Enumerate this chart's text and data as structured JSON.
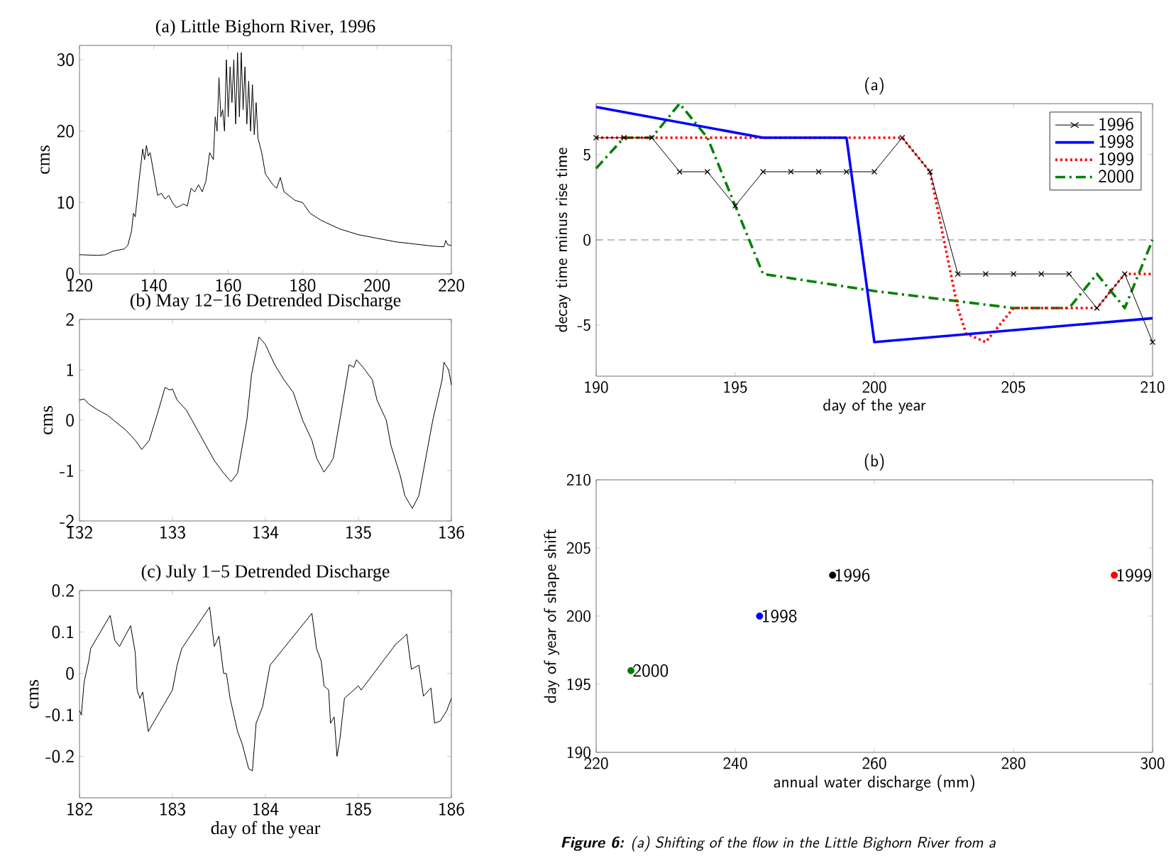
{
  "chart_data": [
    {
      "type": "line",
      "title": "(a) Little Bighorn River, 1996",
      "ylabel": "cms",
      "color": "#000000",
      "x": [
        120,
        125,
        127,
        129,
        132,
        133,
        134,
        134.5,
        135,
        135.5,
        136,
        137,
        137.5,
        138,
        138.5,
        139,
        140,
        141,
        142,
        143,
        144,
        145,
        146,
        147,
        148,
        149,
        150,
        151,
        152,
        153,
        154,
        155,
        156,
        156.5,
        157,
        157.5,
        158,
        158.5,
        159,
        159.5,
        160,
        160.5,
        161,
        161.5,
        162,
        162.5,
        163,
        163.5,
        164,
        164.5,
        165,
        165.5,
        166,
        166.5,
        167,
        167.5,
        168,
        169,
        170,
        172,
        173,
        174,
        175,
        178,
        180,
        182,
        185,
        190,
        195,
        200,
        205,
        210,
        215,
        218,
        218.5,
        219,
        220
      ],
      "values": [
        2.7,
        2.6,
        2.7,
        3.2,
        3.5,
        4,
        6,
        8.5,
        8,
        10.5,
        13,
        17.5,
        16,
        18,
        16.5,
        17,
        14,
        11,
        11.3,
        10.5,
        11,
        10,
        9.3,
        9.5,
        9.8,
        9.5,
        12,
        11.5,
        12.5,
        11.5,
        13,
        17,
        16,
        22,
        20,
        27.5,
        22,
        23,
        20,
        30,
        22,
        29,
        24,
        30,
        21,
        31,
        22,
        31,
        23,
        29,
        21,
        27,
        20,
        26.5,
        19.5,
        24,
        19,
        17,
        14,
        12.5,
        12,
        13.5,
        11.5,
        10.3,
        10,
        8.5,
        7.5,
        6.3,
        5.5,
        5,
        4.5,
        4.2,
        3.9,
        3.8,
        4.7,
        4.1,
        4
      ],
      "xlim": [
        120,
        220
      ],
      "ylim": [
        0,
        32
      ],
      "xticks": [
        120,
        140,
        160,
        180,
        200,
        220
      ],
      "yticks": [
        0,
        10,
        20,
        30
      ]
    },
    {
      "type": "line",
      "title": "(b) May 12−16 Detrended Discharge",
      "ylabel": "cms",
      "color": "#000000",
      "x": [
        132,
        132.05,
        132.1,
        132.2,
        132.3,
        132.4,
        132.5,
        132.6,
        132.67,
        132.75,
        132.85,
        132.92,
        132.97,
        133.0,
        133.05,
        133.15,
        133.3,
        133.45,
        133.55,
        133.63,
        133.7,
        133.8,
        133.85,
        133.93,
        134.0,
        134.1,
        134.2,
        134.3,
        134.4,
        134.5,
        134.55,
        134.63,
        134.7,
        134.73,
        134.8,
        134.9,
        134.95,
        134.98,
        135.05,
        135.15,
        135.2,
        135.3,
        135.35,
        135.45,
        135.5,
        135.58,
        135.65,
        135.75,
        135.8,
        135.9,
        135.92,
        135.97,
        136
      ],
      "values": [
        0.4,
        0.42,
        0.32,
        0.2,
        0.1,
        -0.05,
        -0.2,
        -0.4,
        -0.58,
        -0.4,
        0.2,
        0.65,
        0.6,
        0.62,
        0.4,
        0.2,
        -0.3,
        -0.8,
        -1.05,
        -1.22,
        -1.05,
        0.0,
        0.9,
        1.65,
        1.5,
        1.1,
        0.8,
        0.55,
        0.0,
        -0.4,
        -0.75,
        -1.03,
        -0.85,
        -0.75,
        0.0,
        1.1,
        1.05,
        1.2,
        1.05,
        0.8,
        0.4,
        0.0,
        -0.5,
        -1.1,
        -1.5,
        -1.75,
        -1.5,
        -0.5,
        0.0,
        0.8,
        1.15,
        1.0,
        0.7
      ],
      "xlim": [
        132,
        136
      ],
      "ylim": [
        -2,
        2
      ],
      "xticks": [
        132,
        133,
        134,
        135,
        136
      ],
      "yticks": [
        -2,
        -1,
        0,
        1,
        2
      ]
    },
    {
      "type": "line",
      "title": "(c) July 1−5 Detrended Discharge",
      "xlabel": "day of the year",
      "ylabel": "cms",
      "color": "#000000",
      "x": [
        182,
        182.02,
        182.05,
        182.1,
        182.12,
        182.33,
        182.38,
        182.43,
        182.55,
        182.6,
        182.62,
        182.65,
        182.68,
        182.74,
        183.0,
        183.05,
        183.1,
        183.4,
        183.45,
        183.5,
        183.55,
        183.58,
        183.62,
        183.7,
        183.75,
        183.82,
        183.86,
        183.9,
        183.97,
        184.05,
        184.5,
        184.55,
        184.6,
        184.63,
        184.68,
        184.7,
        184.74,
        184.77,
        184.8,
        184.85,
        185.0,
        185.03,
        185.4,
        185.45,
        185.5,
        185.52,
        185.57,
        185.65,
        185.7,
        185.78,
        185.82,
        185.88,
        185.95,
        186
      ],
      "values": [
        -0.09,
        -0.1,
        -0.02,
        0.03,
        0.06,
        0.14,
        0.08,
        0.065,
        0.115,
        0.05,
        -0.04,
        -0.06,
        -0.045,
        -0.14,
        -0.04,
        0.02,
        0.06,
        0.16,
        0.065,
        0.09,
        0.0,
        0.0,
        -0.06,
        -0.14,
        -0.17,
        -0.23,
        -0.235,
        -0.12,
        -0.08,
        0.02,
        0.145,
        0.06,
        0.03,
        -0.03,
        -0.04,
        -0.12,
        -0.105,
        -0.2,
        -0.16,
        -0.06,
        -0.03,
        -0.04,
        0.07,
        0.08,
        0.09,
        0.095,
        0.01,
        0.02,
        -0.055,
        -0.035,
        -0.12,
        -0.115,
        -0.09,
        -0.06
      ],
      "xlim": [
        182,
        186
      ],
      "ylim": [
        -0.3,
        0.2
      ],
      "xticks": [
        182,
        183,
        184,
        185,
        186
      ],
      "yticks": [
        -0.2,
        -0.1,
        0,
        0.1,
        0.2
      ]
    },
    {
      "type": "line",
      "title": "(a)",
      "xlabel": "day of the year",
      "ylabel": "decay time minus rise time",
      "legend": "top right",
      "series": [
        {
          "name": "1996",
          "color": "#000000",
          "marker": "cross",
          "x": [
            190,
            191,
            192,
            193,
            194,
            195,
            196,
            197,
            198,
            199,
            200,
            201,
            202,
            203,
            204,
            205,
            206,
            207,
            208,
            209,
            210
          ],
          "values": [
            6,
            6,
            6,
            4,
            4,
            2,
            4,
            4,
            4,
            4,
            4,
            6,
            4,
            -2,
            -2,
            -2,
            -2,
            -2,
            -4,
            -2,
            -6
          ]
        },
        {
          "name": "1998",
          "color": "#0000ff",
          "line_style": "solid",
          "x": [
            190,
            196,
            199,
            200,
            210
          ],
          "values": [
            7.8,
            6,
            6,
            -6,
            -4.6
          ]
        },
        {
          "name": "1999",
          "color": "#ff0000",
          "line_style": "dotted",
          "x": [
            190,
            201,
            202,
            202.5,
            203,
            203.3,
            204,
            205,
            206,
            207,
            208,
            209,
            210
          ],
          "values": [
            6,
            6,
            4,
            0,
            -4,
            -5.5,
            -6,
            -4,
            -4,
            -4,
            -4,
            -2,
            -2
          ]
        },
        {
          "name": "2000",
          "color": "#008000",
          "line_style": "dashdot",
          "x": [
            190,
            191,
            192,
            193,
            194,
            195,
            196,
            200,
            205,
            207,
            208,
            209,
            210
          ],
          "values": [
            4.2,
            6,
            6,
            8,
            6,
            2,
            -2,
            -3,
            -4,
            -4,
            -2,
            -4,
            0
          ]
        }
      ],
      "ref_lines": [
        {
          "axis": "y",
          "value": 0,
          "color": "#808080",
          "line_style": "dashed"
        }
      ],
      "xlim": [
        190,
        210
      ],
      "ylim": [
        -8,
        8
      ],
      "xticks": [
        190,
        195,
        200,
        205,
        210
      ],
      "yticks": [
        -5,
        0,
        5
      ]
    },
    {
      "type": "scatter",
      "title": "(b)",
      "xlabel": "annual water discharge (mm)",
      "ylabel": "day of year of shape shift",
      "marker": "circle",
      "series": [
        {
          "name": "1996",
          "color": "#000000",
          "x": [
            254
          ],
          "values": [
            203
          ]
        },
        {
          "name": "1998",
          "color": "#0000ff",
          "x": [
            243.5
          ],
          "values": [
            200
          ]
        },
        {
          "name": "1999",
          "color": "#ff0000",
          "x": [
            294.5
          ],
          "values": [
            203
          ]
        },
        {
          "name": "2000",
          "color": "#008000",
          "x": [
            225
          ],
          "values": [
            196
          ]
        }
      ],
      "annotations": [
        "**Figure 6:** (a) Shifting of the flow in the Little Bighorn River from a"
      ],
      "xlim": [
        220,
        300
      ],
      "ylim": [
        190,
        210
      ],
      "xticks": [
        220,
        240,
        260,
        280,
        300
      ],
      "yticks": [
        190,
        195,
        200,
        205,
        210
      ]
    }
  ]
}
